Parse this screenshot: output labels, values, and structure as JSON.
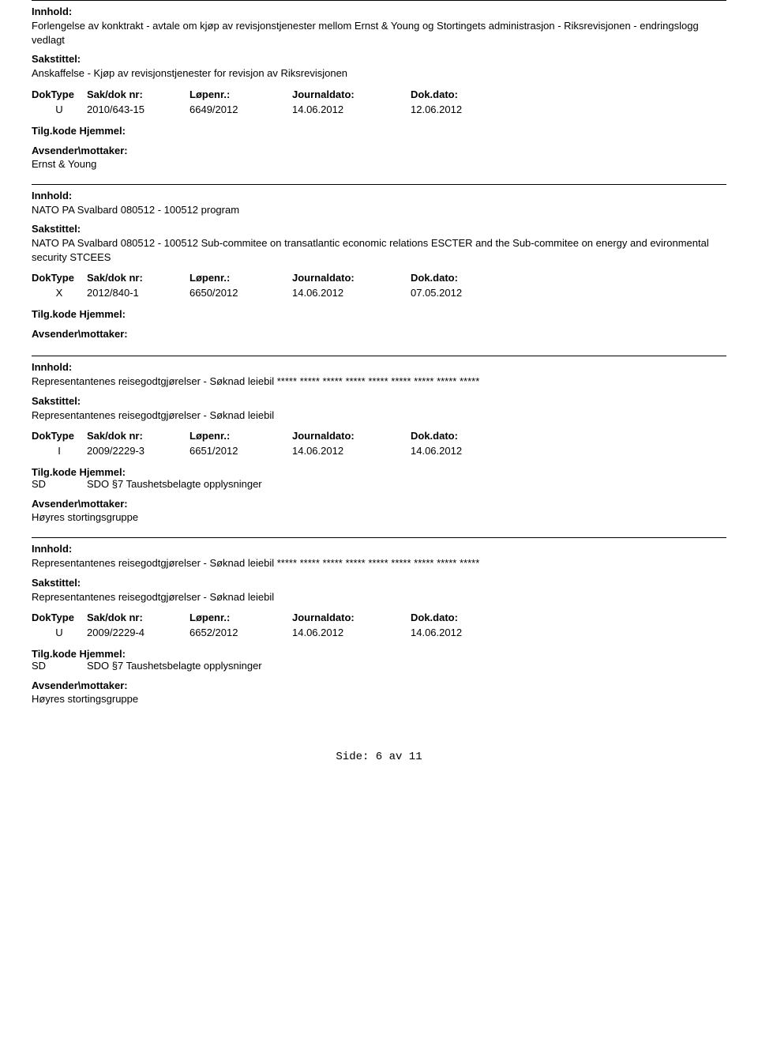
{
  "labels": {
    "innhold": "Innhold:",
    "sakstittel": "Sakstittel:",
    "doktype": "DokType",
    "sakdoknr": "Sak/dok nr:",
    "lopenr": "Løpenr.:",
    "journaldato": "Journaldato:",
    "dokdato": "Dok.dato:",
    "tilgkode": "Tilg.kode",
    "hjemmel": "Hjemmel:",
    "avsender": "Avsender\\mottaker:"
  },
  "entries": [
    {
      "innhold": "Forlengelse av konktrakt - avtale om kjøp av revisjonstjenester mellom Ernst & Young og Stortingets administrasjon - Riksrevisjonen - endringslogg vedlagt",
      "sakstittel": "Anskaffelse - Kjøp av revisjonstjenester for revisjon av Riksrevisjonen",
      "doktype": "U",
      "sakdoknr": "2010/643-15",
      "lopenr": "6649/2012",
      "journaldato": "14.06.2012",
      "dokdato": "12.06.2012",
      "hjemmel_code": "",
      "hjemmel_text": "",
      "avsender": "Ernst & Young"
    },
    {
      "innhold": "NATO PA Svalbard 080512 - 100512 program",
      "sakstittel": "NATO PA Svalbard 080512 - 100512 Sub-commitee on transatlantic economic relations ESCTER and the Sub-commitee on energy and evironmental security STCEES",
      "doktype": "X",
      "sakdoknr": "2012/840-1",
      "lopenr": "6650/2012",
      "journaldato": "14.06.2012",
      "dokdato": "07.05.2012",
      "hjemmel_code": "",
      "hjemmel_text": "",
      "avsender": ""
    },
    {
      "innhold": "Representantenes reisegodtgjørelser - Søknad leiebil ***** ***** ***** *****  ***** ***** ***** ***** *****",
      "sakstittel": "Representantenes reisegodtgjørelser - Søknad leiebil",
      "doktype": "I",
      "sakdoknr": "2009/2229-3",
      "lopenr": "6651/2012",
      "journaldato": "14.06.2012",
      "dokdato": "14.06.2012",
      "hjemmel_code": "SD",
      "hjemmel_text": "SDO §7 Taushetsbelagte opplysninger",
      "avsender": "Høyres stortingsgruppe"
    },
    {
      "innhold": "Representantenes reisegodtgjørelser - Søknad leiebil ***** ***** ***** *****  ***** ***** ***** ***** *****",
      "sakstittel": "Representantenes reisegodtgjørelser - Søknad leiebil",
      "doktype": "U",
      "sakdoknr": "2009/2229-4",
      "lopenr": "6652/2012",
      "journaldato": "14.06.2012",
      "dokdato": "14.06.2012",
      "hjemmel_code": "SD",
      "hjemmel_text": "SDO §7 Taushetsbelagte opplysninger",
      "avsender": "Høyres stortingsgruppe"
    }
  ],
  "footer": "Side: 6 av 11"
}
